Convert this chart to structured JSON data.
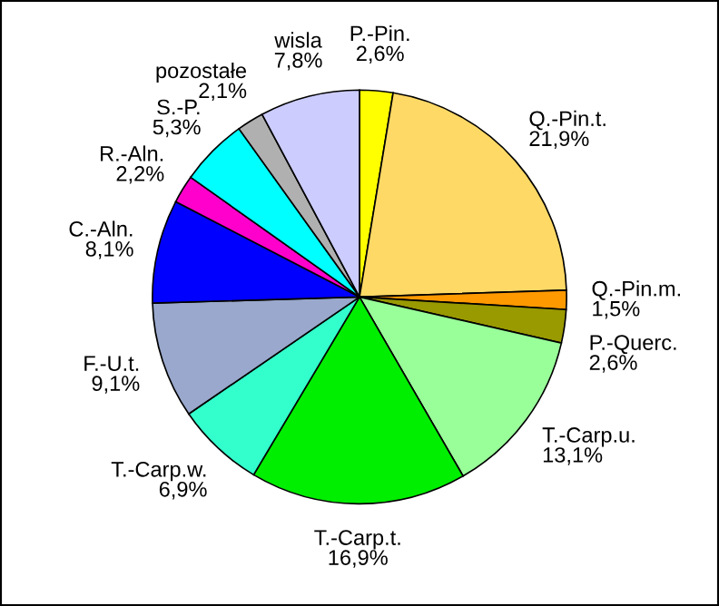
{
  "chart_data": {
    "type": "pie",
    "categories": [
      "P.-Pin.",
      "Q.-Pin.t.",
      "Q.-Pin.m.",
      "P.-Querc.",
      "T.-Carp.u.",
      "T.-Carp.t.",
      "T.-Carp.w.",
      "F.-U.t.",
      "C.-Aln.",
      "R.-Aln.",
      "S.-P.",
      "pozostałe",
      "wisla"
    ],
    "values": [
      2.6,
      21.9,
      1.5,
      2.6,
      13.1,
      16.9,
      6.9,
      9.1,
      8.1,
      2.2,
      5.3,
      2.1,
      7.8
    ],
    "value_labels": [
      "2,6%",
      "21,9%",
      "1,5%",
      "2,6%",
      "13,1%",
      "16,9%",
      "6,9%",
      "9,1%",
      "8,1%",
      "2,2%",
      "5,3%",
      "2,1%",
      "7,8%"
    ],
    "colors": [
      "#ffff00",
      "#ffd966",
      "#ff9900",
      "#999900",
      "#99ff99",
      "#00ee00",
      "#33ffcc",
      "#99a8cc",
      "#0000ff",
      "#ff00cc",
      "#00ffff",
      "#b0b0b0",
      "#ccccff"
    ],
    "legend": false
  }
}
